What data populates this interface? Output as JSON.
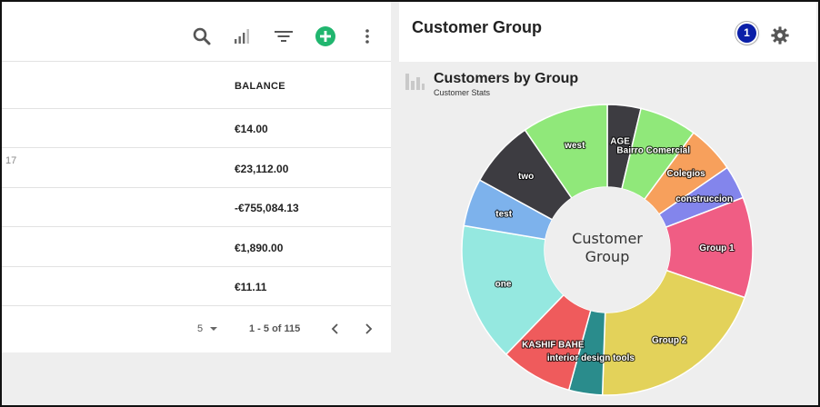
{
  "toolbar": {
    "icons": [
      "search-icon",
      "bar-chart-icon",
      "filter-icon",
      "add-icon",
      "more-vert-icon"
    ],
    "add_color": "#21b66f"
  },
  "table": {
    "column_header": "BALANCE",
    "rows": [
      {
        "balance": "€14.00",
        "fragment": ""
      },
      {
        "balance": "€23,112.00",
        "fragment": "17"
      },
      {
        "balance": "-€755,084.13",
        "fragment": ""
      },
      {
        "balance": "€1,890.00",
        "fragment": ""
      },
      {
        "balance": "€11.11",
        "fragment": ""
      }
    ]
  },
  "pagination": {
    "per_page": "5",
    "range": "1 - 5 of 115"
  },
  "header": {
    "title": "Customer Group",
    "badge": "1"
  },
  "widget": {
    "title": "Customers by Group",
    "subtitle": "Customer Stats"
  },
  "chart_data": {
    "type": "pie",
    "center_label": [
      "Customer",
      "Group"
    ],
    "slices": [
      {
        "label": "AGE",
        "value": 3.5,
        "color": "#3d3c41"
      },
      {
        "label": "Bairro Comercial",
        "value": 6,
        "color": "#90e87a"
      },
      {
        "label": "Colegios",
        "value": 5,
        "color": "#f7a05c"
      },
      {
        "label": "construccion",
        "value": 3.5,
        "color": "#8385ec"
      },
      {
        "label": "Group 1",
        "value": 10.5,
        "color": "#f05d84"
      },
      {
        "label": "Group 2",
        "value": 19,
        "color": "#e3d25a"
      },
      {
        "label": "interior design tools",
        "value": 3.5,
        "color": "#2a8c8c"
      },
      {
        "label": "KASHIF BAHE",
        "value": 7.5,
        "color": "#ef5b5c"
      },
      {
        "label": "one",
        "value": 14.5,
        "color": "#95e8e0"
      },
      {
        "label": "test",
        "value": 5,
        "color": "#7db2ec"
      },
      {
        "label": "two",
        "value": 7,
        "color": "#3d3c41"
      },
      {
        "label": "west",
        "value": 9,
        "color": "#90e87a"
      }
    ]
  }
}
